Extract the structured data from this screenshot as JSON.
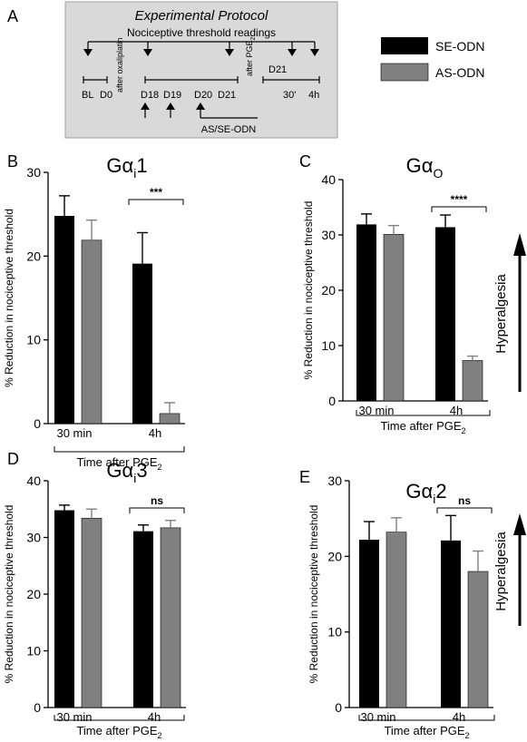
{
  "colors": {
    "se": "#000000",
    "as": "#808080",
    "protocol_bg": "#d9d9d9"
  },
  "protocol": {
    "panel_letter": "A",
    "title": "Experimental Protocol",
    "readings_label": "Nociceptive threshold readings",
    "bl": "BL",
    "d0": "D0",
    "after_oxaliplatin": "after oxaliplatin",
    "d18": "D18",
    "d19": "D19",
    "d20": "D20",
    "d21a": "D21",
    "after_pge2": "after PGE",
    "after_pge2_sub": "2",
    "d21b": "D21",
    "t30": "30'",
    "t4h": "4h",
    "odn_label": "AS/SE-ODN"
  },
  "legend": [
    {
      "label": "SE-ODN",
      "color": "#000000"
    },
    {
      "label": "AS-ODN",
      "color": "#808080"
    }
  ],
  "hyperalgesia_label": "Hyperalgesia",
  "chart_data": [
    {
      "panel": "B",
      "type": "bar",
      "title": "Gα",
      "title_sub": "i",
      "title_suffix": "1",
      "ylabel": "% Reduction in nociceptive threshold",
      "xlabel": "Time after PGE",
      "xlabel_sub": "2",
      "categories": [
        "30 min",
        "4h"
      ],
      "ylim": [
        0,
        30
      ],
      "yticks": [
        0,
        10,
        20,
        30
      ],
      "series": [
        {
          "name": "SE-ODN",
          "values": [
            24.8,
            19.1
          ],
          "errors": [
            2.4,
            3.7
          ]
        },
        {
          "name": "AS-ODN",
          "values": [
            21.9,
            1.2
          ],
          "errors": [
            2.4,
            1.3
          ]
        }
      ],
      "significance": "***"
    },
    {
      "panel": "C",
      "type": "bar",
      "title": "Gα",
      "title_sub": "O",
      "title_suffix": "",
      "ylabel": "% Reduction in nociceptive threshold",
      "xlabel": "Time after PGE",
      "xlabel_sub": "2",
      "categories": [
        "30 min",
        "4h"
      ],
      "ylim": [
        0,
        40
      ],
      "yticks": [
        0,
        10,
        20,
        30,
        40
      ],
      "series": [
        {
          "name": "SE-ODN",
          "values": [
            31.9,
            31.4
          ],
          "errors": [
            1.9,
            2.2
          ]
        },
        {
          "name": "AS-ODN",
          "values": [
            30.1,
            7.3
          ],
          "errors": [
            1.6,
            0.8
          ]
        }
      ],
      "significance": "****"
    },
    {
      "panel": "D",
      "type": "bar",
      "title": "Gα",
      "title_sub": "i",
      "title_suffix": "3",
      "ylabel": "% Reduction in nociceptive threshold",
      "xlabel": "Time after PGE",
      "xlabel_sub": "2",
      "categories": [
        "30 min",
        "4h"
      ],
      "ylim": [
        0,
        40
      ],
      "yticks": [
        0,
        10,
        20,
        30,
        40
      ],
      "series": [
        {
          "name": "SE-ODN",
          "values": [
            34.8,
            31.1
          ],
          "errors": [
            0.9,
            1.1
          ]
        },
        {
          "name": "AS-ODN",
          "values": [
            33.4,
            31.7
          ],
          "errors": [
            1.6,
            1.3
          ]
        }
      ],
      "significance": "ns"
    },
    {
      "panel": "E",
      "type": "bar",
      "title": "Gα",
      "title_sub": "i",
      "title_suffix": "2",
      "ylabel": "% Reduction in nociceptive threshold",
      "xlabel": "Time after PGE",
      "xlabel_sub": "2",
      "categories": [
        "30 min",
        "4h"
      ],
      "ylim": [
        0,
        30
      ],
      "yticks": [
        0,
        10,
        20,
        30
      ],
      "series": [
        {
          "name": "SE-ODN",
          "values": [
            22.2,
            22.1
          ],
          "errors": [
            2.4,
            3.3
          ]
        },
        {
          "name": "AS-ODN",
          "values": [
            23.2,
            18.0
          ],
          "errors": [
            1.9,
            2.7
          ]
        }
      ],
      "significance": "ns"
    }
  ]
}
